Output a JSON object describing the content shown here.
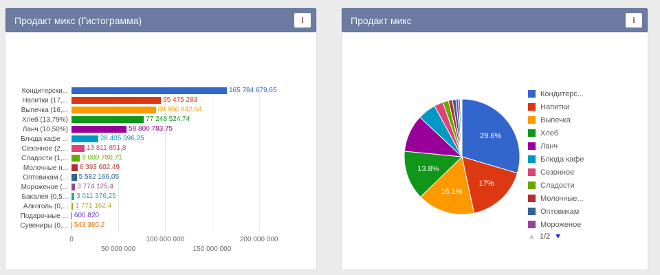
{
  "colors": {
    "page_bg": "#ebebeb",
    "panel_bg": "#ffffff",
    "header_bg": "#6b7ba1",
    "header_text": "#f2f4fa",
    "grid_line": "#e7e7e7",
    "axis_text": "#666666",
    "category_text": "#4a4a4a",
    "legend_text": "#58585a",
    "pagination_up": "#c4c4c4",
    "pagination_down": "#2323c8"
  },
  "left_panel": {
    "title": "Продакт микс (Гистограмма)",
    "info_button": "i",
    "chart_data": {
      "type": "bar",
      "orientation": "horizontal",
      "x_axis": {
        "max": 245000000,
        "ticks": [
          {
            "label": "0",
            "value": 0
          },
          {
            "label": "50 000 000",
            "value": 50000000
          },
          {
            "label": "100 000 000",
            "value": 100000000
          },
          {
            "label": "150 000 000",
            "value": 150000000
          },
          {
            "label": "200 000 000",
            "value": 200000000
          }
        ]
      },
      "bars": [
        {
          "category": "Кондитерски...",
          "value": 165784679.65,
          "value_label": "165 784 679,65",
          "color": "#3366cc"
        },
        {
          "category": "Напитки (17,...",
          "value": 95475283,
          "value_label": "95 475 283",
          "color": "#dc3912"
        },
        {
          "category": "Выпечка (16,...",
          "value": 89956842.64,
          "value_label": "89 956 842,64",
          "color": "#ff9900"
        },
        {
          "category": "Хлеб (13,79%)",
          "value": 77248524.74,
          "value_label": "77 248 524,74",
          "color": "#109618"
        },
        {
          "category": "Ланч (10,50%)",
          "value": 58800783.75,
          "value_label": "58 800 783,75",
          "color": "#990099"
        },
        {
          "category": "Блюда кафе ...",
          "value": 28405396.25,
          "value_label": "28 405 396,25",
          "color": "#0099c6"
        },
        {
          "category": "Сезонное (2,...",
          "value": 13811851.8,
          "value_label": "13 811 851,8",
          "color": "#dd4477"
        },
        {
          "category": "Сладости (1,...",
          "value": 9000780.71,
          "value_label": "9 000 780,71",
          "color": "#66aa00"
        },
        {
          "category": "Молочные п...",
          "value": 6393602.49,
          "value_label": "6 393 602,49",
          "color": "#b82e2e"
        },
        {
          "category": "Оптовикам (...",
          "value": 5582166.05,
          "value_label": "5 582 166,05",
          "color": "#316395"
        },
        {
          "category": "Мороженое (...",
          "value": 3774125.4,
          "value_label": "3 774 125,4",
          "color": "#994499"
        },
        {
          "category": "Бакалея (0,5...",
          "value": 3011376.25,
          "value_label": "3 011 376,25",
          "color": "#22aa99"
        },
        {
          "category": "Алкоголь (0,...",
          "value": 1771162.4,
          "value_label": "1 771 162,4",
          "color": "#aaaa11"
        },
        {
          "category": "Подарочные ...",
          "value": 600820,
          "value_label": "600 820",
          "color": "#6633cc"
        },
        {
          "category": "Сувениры (0,...",
          "value": 543380.2,
          "value_label": "543 380,2",
          "color": "#e67300"
        }
      ]
    }
  },
  "right_panel": {
    "title": "Продакт микс",
    "info_button": "i",
    "chart_data": {
      "type": "pie",
      "slices": [
        {
          "name": "Кондитерски...",
          "pct": 29.6,
          "label": "29.6%",
          "color": "#3366cc"
        },
        {
          "name": "Напитки",
          "pct": 17.1,
          "label": "17%",
          "color": "#dc3912"
        },
        {
          "name": "Выпечка",
          "pct": 16.1,
          "label": "16.1%",
          "color": "#ff9900"
        },
        {
          "name": "Хлеб",
          "pct": 13.8,
          "label": "13.8%",
          "color": "#109618"
        },
        {
          "name": "Ланч",
          "pct": 10.5,
          "label": "",
          "color": "#990099"
        },
        {
          "name": "Блюда кафе",
          "pct": 5.1,
          "label": "",
          "color": "#0099c6"
        },
        {
          "name": "Сезонное",
          "pct": 2.5,
          "label": "",
          "color": "#dd4477"
        },
        {
          "name": "Сладости",
          "pct": 1.6,
          "label": "",
          "color": "#66aa00"
        },
        {
          "name": "Молочные",
          "pct": 1.1,
          "label": "",
          "color": "#b82e2e"
        },
        {
          "name": "Оптовикам",
          "pct": 1.0,
          "label": "",
          "color": "#316395"
        },
        {
          "name": "Мороженое",
          "pct": 0.7,
          "label": "",
          "color": "#994499"
        },
        {
          "name": "Бакалея",
          "pct": 0.5,
          "label": "",
          "color": "#22aa99"
        },
        {
          "name": "Алкоголь",
          "pct": 0.3,
          "label": "",
          "color": "#aaaa11"
        },
        {
          "name": "Подарочные",
          "pct": 0.1,
          "label": "",
          "color": "#6633cc"
        },
        {
          "name": "Сувениры",
          "pct": 0.1,
          "label": "",
          "color": "#e67300"
        }
      ]
    },
    "legend": {
      "items": [
        {
          "label": "Кондитерс...",
          "color": "#3366cc"
        },
        {
          "label": "Напитки",
          "color": "#dc3912"
        },
        {
          "label": "Выпечка",
          "color": "#ff9900"
        },
        {
          "label": "Хлеб",
          "color": "#109618"
        },
        {
          "label": "Ланч",
          "color": "#990099"
        },
        {
          "label": "Блюда кафе",
          "color": "#0099c6"
        },
        {
          "label": "Сезонное",
          "color": "#dd4477"
        },
        {
          "label": "Сладости",
          "color": "#66aa00"
        },
        {
          "label": "Молочные...",
          "color": "#b82e2e"
        },
        {
          "label": "Оптовикам",
          "color": "#316395"
        },
        {
          "label": "Мороженое",
          "color": "#994499"
        }
      ],
      "pagination": {
        "up_icon": "▲",
        "text": "1/2",
        "down_icon": "▼"
      }
    }
  }
}
